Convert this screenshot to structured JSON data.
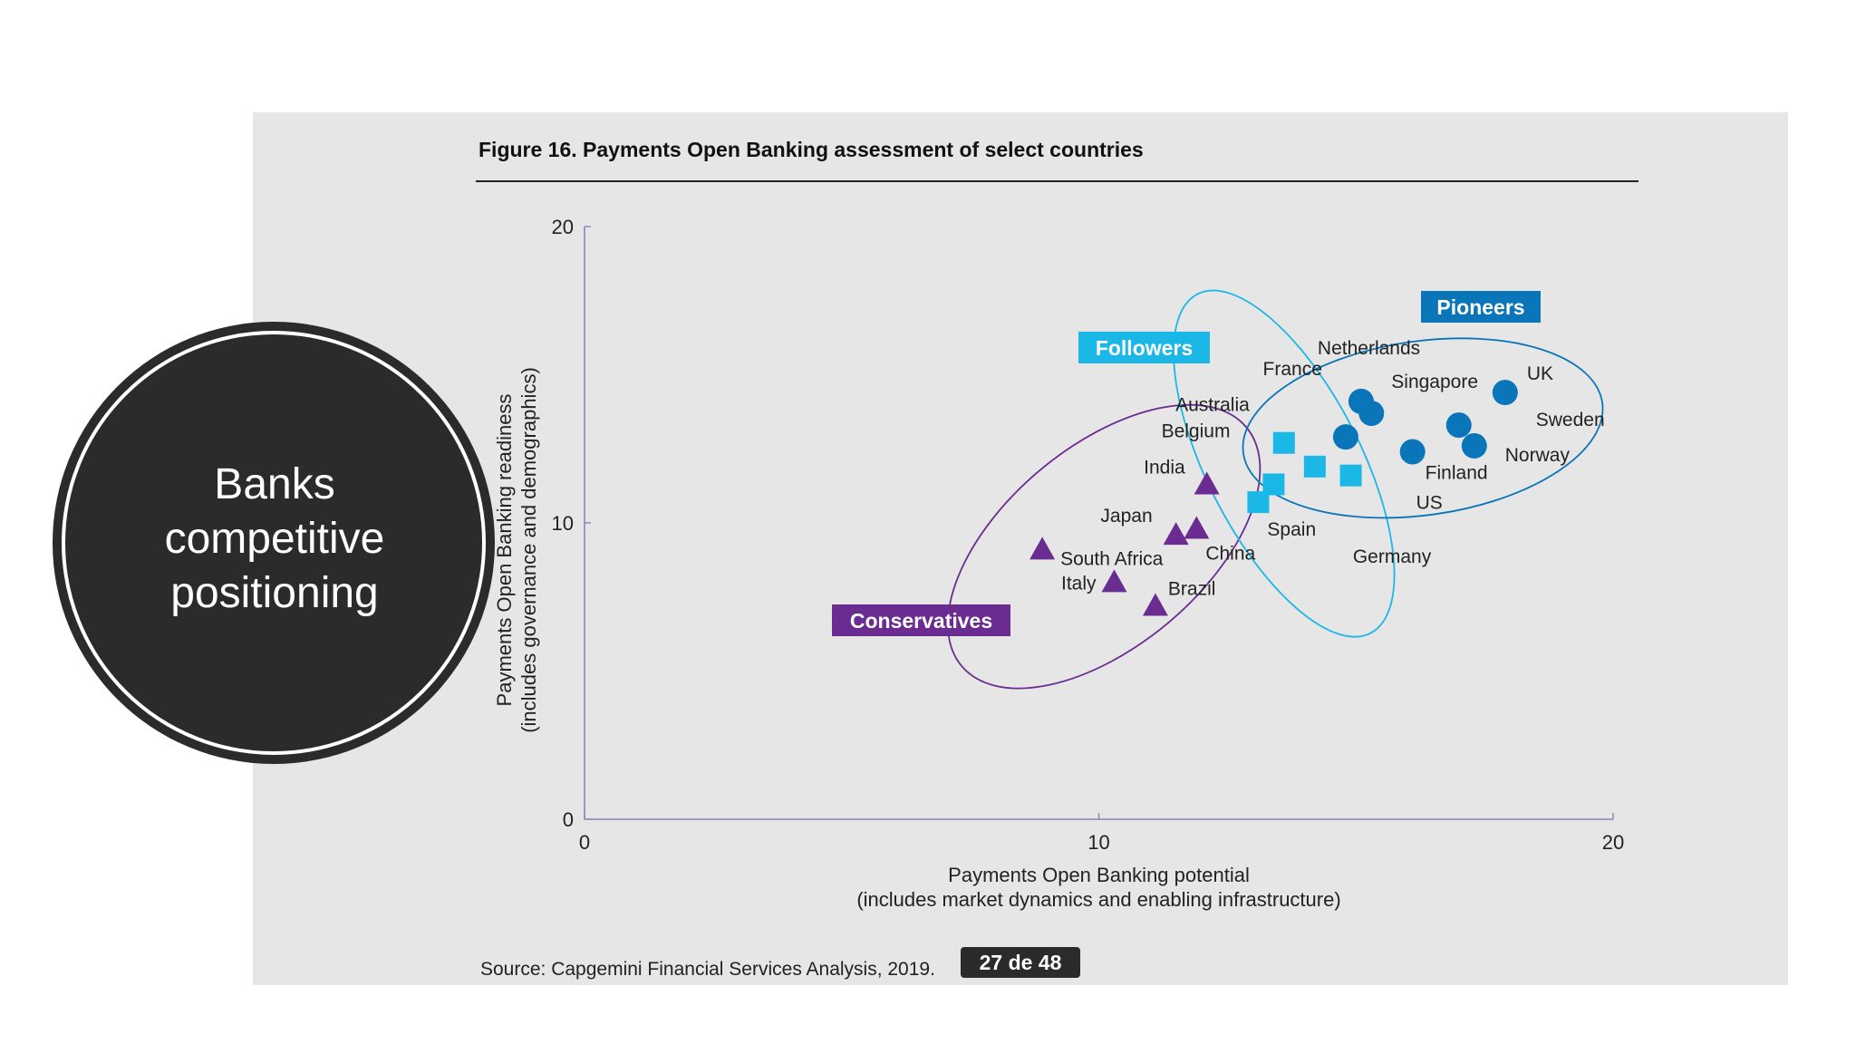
{
  "slide": {
    "heading_lines": [
      "Banks",
      "competitive",
      "positioning"
    ],
    "page_indicator": "27 de 48"
  },
  "figure": {
    "title": "Figure 16. Payments Open Banking assessment of select countries",
    "source": "Source: Capgemini Financial Services Analysis, 2019."
  },
  "colors": {
    "conservatives": "#6b2c91",
    "followers": "#1bb7e6",
    "pioneers": "#0a75b8",
    "axis": "#8a86b8"
  },
  "chart_data": {
    "type": "scatter",
    "title": "Figure 16. Payments Open Banking assessment of select countries",
    "xlabel": [
      "Payments Open Banking potential",
      "(includes market dynamics and enabling infrastructure)"
    ],
    "ylabel": [
      "Payments Open Banking readiness",
      "(includes governance and demographics)"
    ],
    "xlim": [
      0,
      20
    ],
    "ylim": [
      0,
      20
    ],
    "xticks": [
      "0",
      "10",
      "20"
    ],
    "yticks": [
      "0",
      "10",
      "20"
    ],
    "grid": false,
    "groups": [
      {
        "name": "Conservatives",
        "marker": "triangle",
        "points": [
          {
            "label": "India",
            "x": 12.1,
            "y": 11.3
          },
          {
            "label": "Japan",
            "x": 11.5,
            "y": 9.6
          },
          {
            "label": "China",
            "x": 11.9,
            "y": 9.8
          },
          {
            "label": "South Africa",
            "x": 8.9,
            "y": 9.1
          },
          {
            "label": "Italy",
            "x": 10.3,
            "y": 8.0
          },
          {
            "label": "Brazil",
            "x": 11.1,
            "y": 7.2
          }
        ]
      },
      {
        "name": "Followers",
        "marker": "square",
        "points": [
          {
            "label": "Australia",
            "x": 13.6,
            "y": 12.7
          },
          {
            "label": "Belgium",
            "x": 13.4,
            "y": 11.3
          },
          {
            "label": "Spain",
            "x": 13.1,
            "y": 10.7
          },
          {
            "label": "Germany",
            "x": 14.2,
            "y": 11.9
          },
          {
            "label": "US",
            "x": 14.9,
            "y": 11.6
          }
        ]
      },
      {
        "name": "Pioneers",
        "marker": "circle",
        "points": [
          {
            "label": "France",
            "x": 14.8,
            "y": 12.9
          },
          {
            "label": "Netherlands",
            "x": 15.1,
            "y": 14.1
          },
          {
            "label": "Singapore",
            "x": 15.3,
            "y": 13.7
          },
          {
            "label": "UK",
            "x": 17.9,
            "y": 14.4
          },
          {
            "label": "Sweden",
            "x": 17.0,
            "y": 13.3
          },
          {
            "label": "Finland",
            "x": 16.1,
            "y": 12.4
          },
          {
            "label": "Norway",
            "x": 17.3,
            "y": 12.6
          }
        ]
      }
    ]
  }
}
